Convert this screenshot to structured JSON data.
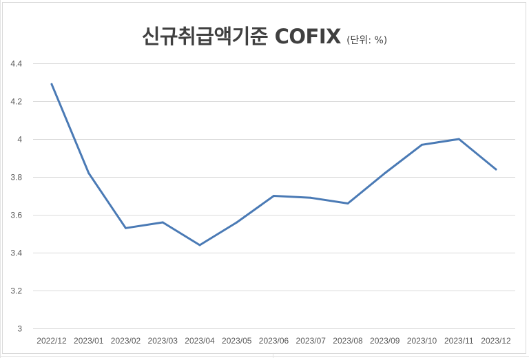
{
  "chart_data": {
    "type": "line",
    "title": "신규취급액기준 COFIX",
    "subtitle": "(단위: %)",
    "categories": [
      "2022/12",
      "2023/01",
      "2023/02",
      "2023/03",
      "2023/04",
      "2023/05",
      "2023/06",
      "2023/07",
      "2023/08",
      "2023/09",
      "2023/10",
      "2023/11",
      "2023/12"
    ],
    "series": [
      {
        "values": [
          4.29,
          3.82,
          3.53,
          3.56,
          3.44,
          3.56,
          3.7,
          3.69,
          3.66,
          3.82,
          3.97,
          4.0,
          3.84
        ]
      }
    ],
    "ylim": [
      3,
      4.4
    ],
    "yticks": [
      "3",
      "3.2",
      "3.4",
      "3.6",
      "3.8",
      "4",
      "4.2",
      "4.4"
    ],
    "grid": true,
    "legend": "none",
    "line_color": "#4a7ab5"
  }
}
